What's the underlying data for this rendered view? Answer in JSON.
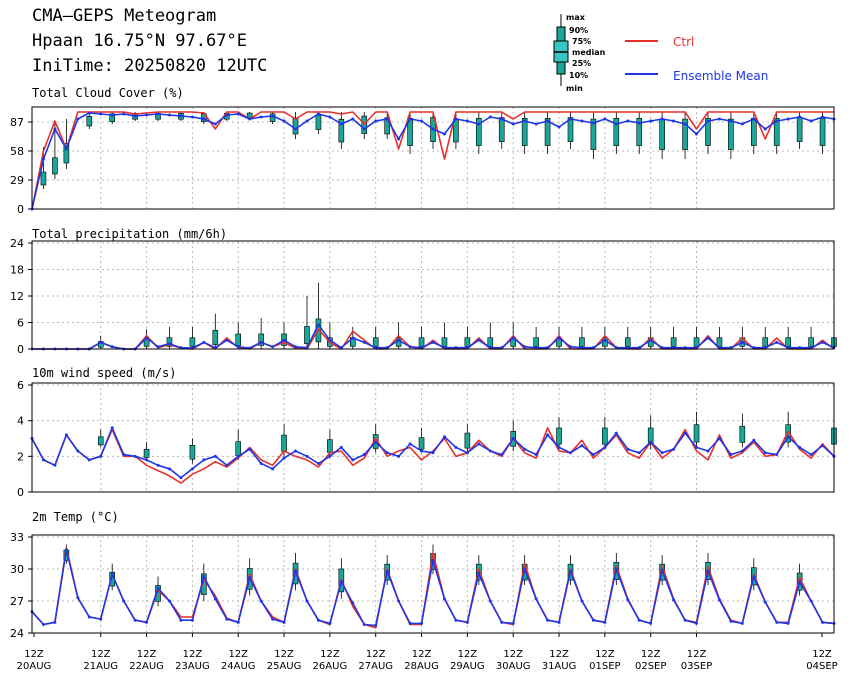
{
  "header": {
    "title": "CMA—GEPS Meteogram",
    "location": "Hpaan 16.75°N 97.67°E",
    "init_time": "IniTime: 20250820 12UTC"
  },
  "legend": {
    "box_labels": [
      "max",
      "90%",
      "75%",
      "median",
      "25%",
      "10%",
      "min"
    ],
    "ctrl_label": "Ctrl",
    "mean_label": "Ensemble Mean"
  },
  "colors": {
    "ctrl": "#e8302a",
    "mean": "#1f36e6",
    "box_fill": "#1aa79a",
    "box_fill_light": "#37c6c3",
    "grid": "#b8b8b8"
  },
  "chart_data": [
    {
      "type": "box",
      "title": "Total Cloud Cover (%)",
      "ylim": [
        0,
        100
      ],
      "yticks": [
        0,
        29,
        58,
        87
      ],
      "ctrl": [
        0,
        58,
        88,
        60,
        97,
        97,
        97,
        97,
        97,
        95,
        96,
        97,
        97,
        97,
        97,
        96,
        80,
        97,
        97,
        90,
        97,
        97,
        97,
        90,
        97,
        97,
        97,
        95,
        97,
        85,
        97,
        97,
        60,
        97,
        97,
        97,
        50,
        97,
        97,
        97,
        97,
        97,
        90,
        97,
        97,
        97,
        97,
        97,
        97,
        97,
        97,
        97,
        97,
        97,
        97,
        97,
        97,
        97,
        80,
        97,
        97,
        97,
        97,
        97,
        70,
        97,
        97,
        97,
        97,
        97,
        97
      ],
      "mean": [
        0,
        50,
        80,
        60,
        90,
        96,
        95,
        94,
        95,
        93,
        94,
        95,
        94,
        93,
        92,
        90,
        85,
        94,
        95,
        90,
        92,
        93,
        88,
        80,
        88,
        95,
        92,
        85,
        90,
        80,
        88,
        90,
        70,
        90,
        88,
        80,
        75,
        90,
        88,
        85,
        92,
        90,
        85,
        88,
        85,
        88,
        82,
        90,
        88,
        86,
        90,
        85,
        88,
        86,
        88,
        90,
        88,
        85,
        75,
        88,
        90,
        88,
        85,
        90,
        80,
        88,
        90,
        92,
        88,
        92,
        90
      ],
      "boxes": [
        [
          1,
          62,
          20,
          40
        ],
        [
          2,
          88,
          30,
          55
        ],
        [
          3,
          90,
          40,
          70
        ],
        [
          5,
          97,
          80,
          95
        ],
        [
          7,
          97,
          85,
          97
        ],
        [
          9,
          97,
          88,
          97
        ],
        [
          11,
          97,
          88,
          97
        ],
        [
          13,
          97,
          88,
          97
        ],
        [
          15,
          97,
          85,
          97
        ],
        [
          17,
          97,
          88,
          97
        ],
        [
          19,
          97,
          90,
          97
        ],
        [
          21,
          97,
          85,
          97
        ],
        [
          23,
          97,
          70,
          95
        ],
        [
          25,
          97,
          75,
          97
        ],
        [
          27,
          97,
          60,
          95
        ],
        [
          29,
          97,
          70,
          97
        ],
        [
          31,
          97,
          70,
          95
        ],
        [
          33,
          97,
          55,
          97
        ],
        [
          35,
          97,
          60,
          97
        ],
        [
          37,
          97,
          60,
          95
        ],
        [
          39,
          97,
          55,
          97
        ],
        [
          41,
          97,
          60,
          97
        ],
        [
          43,
          97,
          55,
          97
        ],
        [
          45,
          97,
          55,
          97
        ],
        [
          47,
          97,
          60,
          97
        ],
        [
          49,
          97,
          50,
          97
        ],
        [
          51,
          97,
          55,
          97
        ],
        [
          53,
          97,
          55,
          97
        ],
        [
          55,
          97,
          50,
          97
        ],
        [
          57,
          97,
          50,
          97
        ],
        [
          59,
          97,
          55,
          97
        ],
        [
          61,
          97,
          50,
          97
        ],
        [
          63,
          97,
          55,
          97
        ],
        [
          65,
          97,
          55,
          97
        ],
        [
          67,
          97,
          60,
          97
        ],
        [
          69,
          97,
          55,
          97
        ]
      ]
    },
    {
      "type": "box",
      "title": "Total precipitation (mm/6h)",
      "ylim": [
        0,
        24
      ],
      "yticks": [
        0,
        6,
        12,
        18,
        24
      ],
      "ctrl": [
        0,
        0,
        0,
        0,
        0,
        0,
        1.5,
        0.5,
        0,
        0,
        3,
        0.3,
        1,
        0.2,
        0,
        1.5,
        0,
        2.5,
        0.3,
        0,
        1.5,
        0.5,
        1.5,
        0.2,
        0,
        4.5,
        1.5,
        0,
        4,
        2,
        0,
        0,
        3,
        0.5,
        0,
        2,
        0,
        0,
        0,
        2.5,
        0,
        0,
        3,
        0,
        0,
        0,
        3,
        0,
        0,
        0,
        3,
        0.3,
        0,
        0,
        2.5,
        0,
        0,
        0,
        0,
        3,
        0,
        0,
        2.5,
        0,
        0,
        2.5,
        0,
        0,
        0,
        2,
        0
      ],
      "mean": [
        0,
        0,
        0,
        0,
        0,
        0,
        1.5,
        0.5,
        0,
        0,
        2.5,
        0.5,
        1.2,
        0.3,
        0.2,
        1.5,
        0.3,
        2,
        0.5,
        0.2,
        1.5,
        0.5,
        2,
        0.5,
        0.3,
        5.5,
        2,
        0.3,
        2.5,
        1.5,
        0.3,
        0.3,
        2,
        0.5,
        0.3,
        1.5,
        0.3,
        0.3,
        0.3,
        2,
        0.3,
        0.3,
        2.5,
        0.5,
        0.3,
        0.3,
        2.5,
        0.5,
        0.3,
        0.3,
        2,
        0.3,
        0.3,
        0.3,
        2,
        0.3,
        0.3,
        0.3,
        0.3,
        2.5,
        0.3,
        0.3,
        1.5,
        0.3,
        0.3,
        1.5,
        0.3,
        0.3,
        0.3,
        1.5,
        0.3
      ],
      "boxes": [
        [
          6,
          3,
          0,
          2
        ],
        [
          10,
          4.5,
          0,
          3
        ],
        [
          12,
          5,
          0,
          3
        ],
        [
          14,
          5,
          0,
          3
        ],
        [
          16,
          8,
          0,
          5
        ],
        [
          18,
          6,
          0,
          4
        ],
        [
          20,
          7,
          0,
          4
        ],
        [
          22,
          6,
          0,
          4
        ],
        [
          24,
          12,
          0,
          6
        ],
        [
          25,
          15,
          0,
          8
        ],
        [
          26,
          6,
          0,
          3
        ],
        [
          28,
          5,
          0,
          3
        ],
        [
          30,
          5,
          0,
          3
        ],
        [
          32,
          6,
          0,
          3
        ],
        [
          34,
          5,
          0,
          3
        ],
        [
          36,
          6,
          0,
          3
        ],
        [
          38,
          5,
          0,
          3
        ],
        [
          40,
          6,
          0,
          3
        ],
        [
          42,
          6,
          0,
          3
        ],
        [
          44,
          5,
          0,
          3
        ],
        [
          46,
          5,
          0,
          3
        ],
        [
          48,
          5,
          0,
          3
        ],
        [
          50,
          5,
          0,
          3
        ],
        [
          52,
          5,
          0,
          3
        ],
        [
          54,
          5,
          0,
          3
        ],
        [
          56,
          5,
          0,
          3
        ],
        [
          58,
          5,
          0,
          3
        ],
        [
          60,
          5,
          0,
          3
        ],
        [
          62,
          5,
          0,
          3
        ],
        [
          64,
          5,
          0,
          3
        ],
        [
          66,
          5,
          0,
          3
        ],
        [
          68,
          5,
          0,
          3
        ],
        [
          70,
          5,
          0,
          3
        ]
      ]
    },
    {
      "type": "box",
      "title": "10m wind speed (m/s)",
      "ylim": [
        0,
        6
      ],
      "yticks": [
        0,
        2,
        4,
        6
      ],
      "ctrl": [
        3,
        1.8,
        1.5,
        3.2,
        2.3,
        1.8,
        2,
        3.5,
        2,
        2,
        1.5,
        1.2,
        0.9,
        0.5,
        1,
        1.3,
        1.7,
        1.4,
        1.9,
        2.5,
        1.8,
        1.5,
        2.3,
        2,
        1.8,
        1.4,
        2.2,
        2.3,
        1.5,
        1.9,
        3,
        2,
        2.3,
        2.5,
        1.8,
        2.3,
        3,
        2,
        2.2,
        2.9,
        2.3,
        2,
        3,
        2.2,
        1.9,
        3.6,
        2.3,
        2.2,
        2.9,
        1.9,
        2.5,
        3.2,
        2.2,
        1.9,
        2.8,
        1.9,
        2.4,
        3.5,
        2.3,
        1.8,
        3.2,
        1.9,
        2.2,
        2.8,
        2,
        2.1,
        3.4,
        2.4,
        1.9,
        2.7,
        2
      ],
      "mean": [
        3,
        1.8,
        1.5,
        3.2,
        2.3,
        1.8,
        2,
        3.6,
        2.1,
        2,
        1.8,
        1.5,
        1.3,
        0.8,
        1.3,
        1.8,
        2,
        1.5,
        2,
        2.4,
        1.6,
        1.3,
        1.9,
        2.3,
        2,
        1.6,
        2,
        2.5,
        1.8,
        2.1,
        2.8,
        2.2,
        2,
        2.7,
        2.3,
        2.2,
        3.1,
        2.5,
        2.2,
        2.7,
        2.3,
        2.1,
        3,
        2.4,
        2.1,
        3.2,
        2.5,
        2.2,
        2.6,
        2.1,
        2.5,
        3.3,
        2.4,
        2.2,
        2.8,
        2.2,
        2.4,
        3.3,
        2.5,
        2.3,
        3,
        2.1,
        2.3,
        2.9,
        2.2,
        2.1,
        3.1,
        2.5,
        2.1,
        2.6,
        2
      ],
      "boxes": [
        [
          6,
          3.5,
          2.5,
          3.2
        ],
        [
          10,
          2.8,
          1.8,
          2.5
        ],
        [
          14,
          3,
          1.6,
          2.8
        ],
        [
          18,
          3.5,
          1.8,
          3
        ],
        [
          22,
          3.8,
          2,
          3.4
        ],
        [
          26,
          3.5,
          2,
          3.1
        ],
        [
          30,
          3.8,
          2.2,
          3.4
        ],
        [
          34,
          3.6,
          2.2,
          3.2
        ],
        [
          38,
          3.8,
          2.2,
          3.5
        ],
        [
          42,
          4,
          2.3,
          3.6
        ],
        [
          46,
          4.2,
          2.4,
          3.8
        ],
        [
          50,
          4.2,
          2.4,
          3.8
        ],
        [
          54,
          4.3,
          2.4,
          3.8
        ],
        [
          58,
          4.5,
          2.5,
          4
        ],
        [
          62,
          4.4,
          2.5,
          3.9
        ],
        [
          66,
          4.5,
          2.5,
          4
        ],
        [
          70,
          4.3,
          2.4,
          3.8
        ]
      ]
    },
    {
      "type": "box",
      "title": "2m Temp (°C)",
      "ylim": [
        24,
        33
      ],
      "yticks": [
        24,
        27,
        30,
        33
      ],
      "ctrl": [
        26,
        24.8,
        25,
        32,
        27.3,
        25.5,
        25.3,
        29.5,
        27,
        25.2,
        25,
        28,
        27,
        25.5,
        25.5,
        29,
        27.5,
        25.4,
        25,
        29.5,
        27,
        25.5,
        25,
        30,
        27,
        25.2,
        24.8,
        29,
        26.5,
        24.8,
        24.5,
        30,
        27,
        24.8,
        24.8,
        31.5,
        27.2,
        25.2,
        25,
        30,
        27,
        25,
        24.8,
        30.5,
        27.2,
        25.2,
        25,
        30,
        27,
        25.2,
        25,
        30.3,
        27.2,
        25.2,
        24.9,
        30.3,
        27.2,
        25.2,
        25,
        30.2,
        27.2,
        25.2,
        24.9,
        29.5,
        26.9,
        25,
        25,
        29.2,
        27,
        25,
        24.9
      ],
      "mean": [
        26,
        24.8,
        25,
        31.8,
        27.3,
        25.5,
        25.3,
        29.5,
        27,
        25.2,
        25,
        28.2,
        27,
        25.2,
        25.2,
        29.3,
        27.2,
        25.3,
        25,
        29.2,
        27,
        25.3,
        25,
        29.8,
        27,
        25.2,
        24.9,
        28.8,
        26.8,
        24.8,
        24.7,
        29.8,
        27,
        24.9,
        24.9,
        30.8,
        27.2,
        25.2,
        25,
        29.6,
        27,
        25,
        24.9,
        30,
        27.2,
        25.2,
        25,
        29.8,
        27,
        25.2,
        25,
        30,
        27.1,
        25.2,
        24.9,
        29.9,
        27.1,
        25.2,
        24.9,
        29.8,
        27.1,
        25.1,
        24.9,
        29.3,
        26.9,
        25,
        24.9,
        28.8,
        27,
        25,
        24.9
      ],
      "boxes": [
        [
          3,
          32.3,
          30.5,
          32
        ],
        [
          7,
          30.5,
          28,
          30
        ],
        [
          11,
          29.3,
          26.5,
          28.8
        ],
        [
          15,
          30.5,
          27,
          30
        ],
        [
          19,
          31,
          27.5,
          30.5
        ],
        [
          23,
          31.5,
          28,
          31
        ],
        [
          27,
          31,
          27.2,
          30.5
        ],
        [
          31,
          31.3,
          28.5,
          30.8
        ],
        [
          35,
          32.3,
          29.5,
          31.8
        ],
        [
          39,
          31.3,
          28.5,
          30.8
        ],
        [
          43,
          31.3,
          28.5,
          30.8
        ],
        [
          47,
          31.3,
          28.5,
          30.8
        ],
        [
          51,
          31.5,
          28.5,
          31
        ],
        [
          55,
          31.3,
          28.5,
          30.8
        ],
        [
          59,
          31.5,
          28.5,
          31
        ],
        [
          63,
          31,
          28,
          30.5
        ],
        [
          67,
          30.5,
          27.5,
          30
        ]
      ]
    }
  ],
  "x_axis": {
    "hour_label": "12Z",
    "dates": [
      "20AUG",
      "21AUG",
      "22AUG",
      "23AUG",
      "24AUG",
      "25AUG",
      "26AUG",
      "27AUG",
      "28AUG",
      "29AUG",
      "30AUG",
      "31AUG",
      "01SEP",
      "02SEP",
      "03SEP",
      "04SEP"
    ]
  }
}
